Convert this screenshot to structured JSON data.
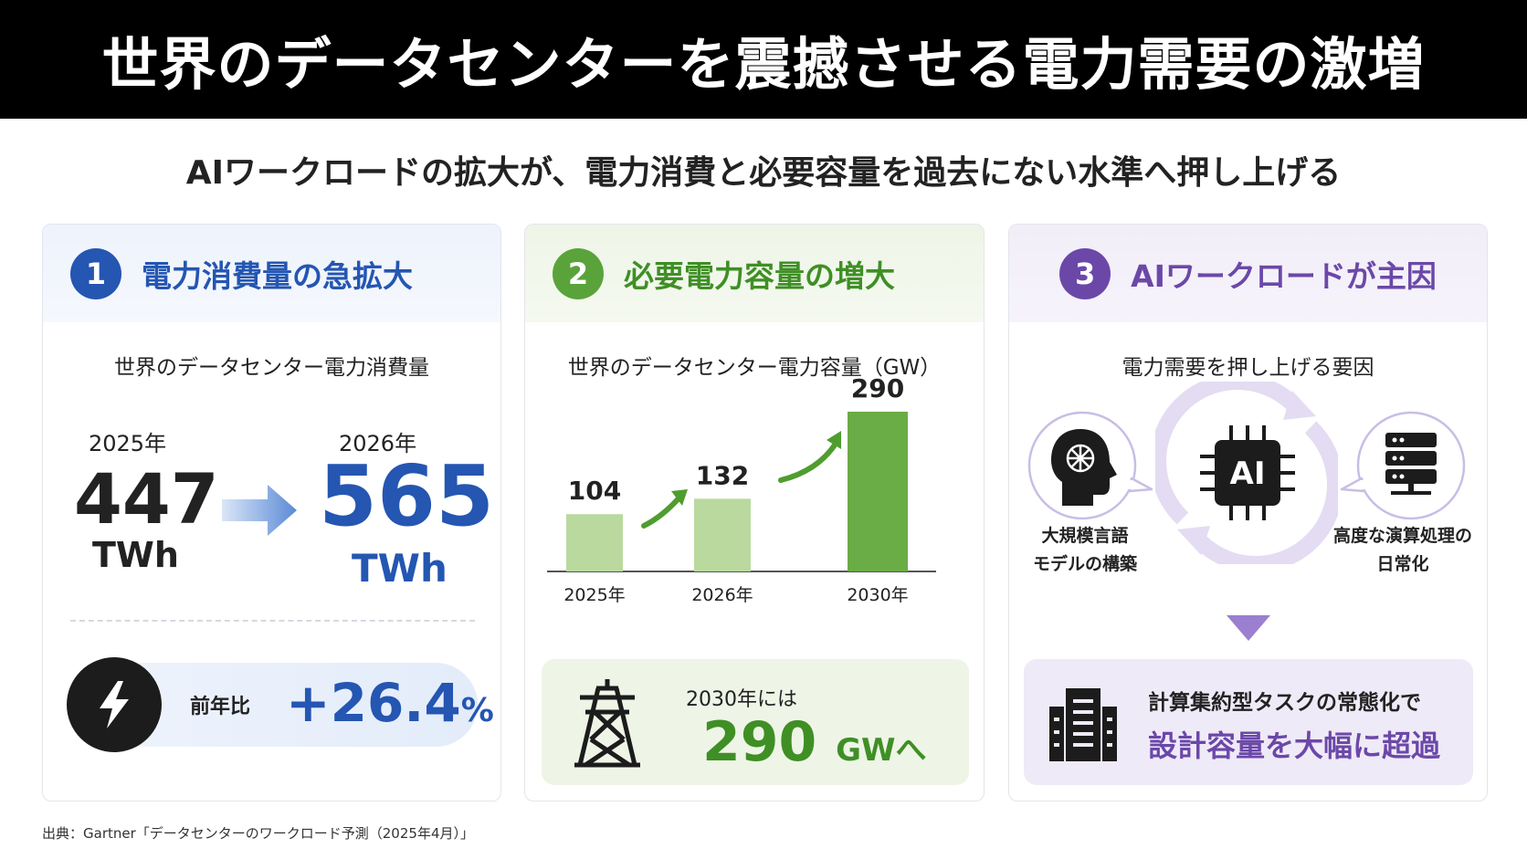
{
  "title": "世界のデータセンターを震撼させる電力需要の激増",
  "subtitle": "AIワークロードの拡大が、電力消費と必要容量を過去にない水準へ押し上げる",
  "card1": {
    "num": "1",
    "title": "電力消費量の急拡大",
    "sub": "世界のデータセンター電力消費量",
    "from_year": "2025年",
    "from_value": "447",
    "from_unit": "TWh",
    "to_year": "2026年",
    "to_value": "565",
    "to_unit": "TWh",
    "yoy_label": "前年比",
    "yoy_value": "+26.4",
    "yoy_unit": "%"
  },
  "card2": {
    "num": "2",
    "title": "必要電力容量の増大",
    "sub": "世界のデータセンター電力容量（GW）",
    "callout_label": "2030年には",
    "callout_value": "290",
    "callout_unit": "GWへ"
  },
  "chart_data": {
    "type": "bar",
    "categories": [
      "2025年",
      "2026年",
      "2030年"
    ],
    "values": [
      104,
      132,
      290
    ],
    "title": "世界のデータセンター電力容量（GW）",
    "ylim": [
      0,
      300
    ],
    "colors": [
      "#b9d99f",
      "#b9d99f",
      "#6aac45"
    ]
  },
  "card3": {
    "num": "3",
    "title": "AIワークロードが主因",
    "sub": "電力需要を押し上げる要因",
    "left_caption": [
      "大規模言語",
      "モデルの構築"
    ],
    "right_caption": [
      "高度な演算処理の",
      "日常化"
    ],
    "chip_label": "AI",
    "box_line1": "計算集約型タスクの常態化で",
    "box_line2": "設計容量を大幅に超過"
  },
  "source": "出典：Gartner「データセンターのワークロード予測（2025年4月）」",
  "colors": {
    "blue": "#2456b2",
    "green": "#5aa33b",
    "purple": "#6b48a8"
  }
}
